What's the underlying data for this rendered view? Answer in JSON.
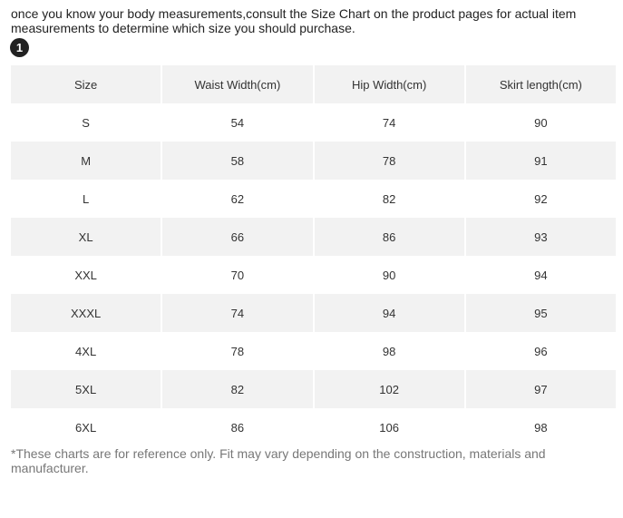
{
  "intro": "once you know your body measurements,consult the Size Chart on the product pages for actual item measurements to determine which size you should purchase.",
  "step": "1",
  "table": {
    "header": [
      "Size",
      "Waist Width(cm)",
      "Hip Width(cm)",
      "Skirt length(cm)"
    ],
    "rows": [
      [
        "S",
        54,
        74,
        90
      ],
      [
        "M",
        58,
        78,
        91
      ],
      [
        "L",
        62,
        82,
        92
      ],
      [
        "XL",
        66,
        86,
        93
      ],
      [
        "XXL",
        70,
        90,
        94
      ],
      [
        "XXXL",
        74,
        94,
        95
      ],
      [
        "4XL",
        78,
        98,
        96
      ],
      [
        "5XL",
        82,
        102,
        97
      ],
      [
        "6XL",
        86,
        106,
        98
      ]
    ]
  },
  "note": "*These charts are for reference only. Fit may vary depending on the construction, materials and manufacturer."
}
